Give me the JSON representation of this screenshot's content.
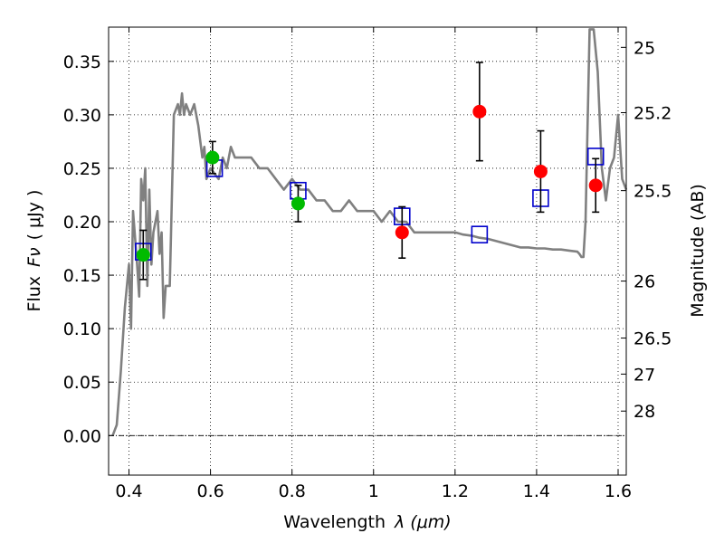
{
  "chart_data": {
    "type": "scatter",
    "xlabel": "Wavelength",
    "xlabel_symbol": "λ (μm)",
    "ylabel": "Flux",
    "ylabel_symbol": "Fν",
    "ylabel_unit": "( μJy )",
    "y2label": "Magnitude (AB)",
    "xlim": [
      0.35,
      1.62
    ],
    "ylim": [
      -0.037,
      0.382
    ],
    "grid": true,
    "x_ticks": [
      0.4,
      0.6,
      0.8,
      1.0,
      1.2,
      1.4,
      1.6
    ],
    "x_tick_labels": [
      "0.4",
      "0.6",
      "0.8",
      "1",
      "1.2",
      "1.4",
      "1.6"
    ],
    "y_ticks": [
      0.0,
      0.05,
      0.1,
      0.15,
      0.2,
      0.25,
      0.3,
      0.35
    ],
    "y_tick_labels": [
      "0.00",
      "0.05",
      "0.10",
      "0.15",
      "0.20",
      "0.25",
      "0.30",
      "0.35"
    ],
    "mag_ticks": [
      {
        "flux": 0.3631,
        "label": "25"
      },
      {
        "flux": 0.302,
        "label": "25.2"
      },
      {
        "flux": 0.2291,
        "label": "25.5"
      },
      {
        "flux": 0.1445,
        "label": "26"
      },
      {
        "flux": 0.0912,
        "label": "26.5"
      },
      {
        "flux": 0.0575,
        "label": "27"
      },
      {
        "flux": 0.0229,
        "label": "28"
      }
    ],
    "colors": {
      "model": "#808080",
      "green": "#00bb00",
      "red": "#ff0000",
      "square": "#0000cc",
      "errorbar": "#000000"
    },
    "model_spectrum": {
      "x": [
        0.36,
        0.37,
        0.38,
        0.39,
        0.4,
        0.405,
        0.41,
        0.42,
        0.425,
        0.43,
        0.435,
        0.44,
        0.445,
        0.45,
        0.455,
        0.46,
        0.47,
        0.475,
        0.48,
        0.485,
        0.49,
        0.5,
        0.51,
        0.52,
        0.525,
        0.53,
        0.535,
        0.54,
        0.55,
        0.56,
        0.57,
        0.58,
        0.585,
        0.59,
        0.6,
        0.62,
        0.63,
        0.64,
        0.65,
        0.66,
        0.68,
        0.7,
        0.72,
        0.74,
        0.76,
        0.78,
        0.8,
        0.82,
        0.84,
        0.86,
        0.88,
        0.9,
        0.92,
        0.94,
        0.96,
        0.98,
        1.0,
        1.02,
        1.04,
        1.06,
        1.08,
        1.1,
        1.12,
        1.14,
        1.16,
        1.18,
        1.2,
        1.22,
        1.24,
        1.26,
        1.28,
        1.3,
        1.32,
        1.34,
        1.36,
        1.38,
        1.4,
        1.42,
        1.44,
        1.46,
        1.48,
        1.5,
        1.505,
        1.51,
        1.515,
        1.52,
        1.53,
        1.54,
        1.55,
        1.56,
        1.57,
        1.58,
        1.59,
        1.6,
        1.61,
        1.62
      ],
      "y": [
        0.0,
        0.01,
        0.06,
        0.12,
        0.16,
        0.1,
        0.21,
        0.16,
        0.13,
        0.24,
        0.22,
        0.25,
        0.14,
        0.23,
        0.16,
        0.19,
        0.21,
        0.17,
        0.19,
        0.11,
        0.14,
        0.14,
        0.3,
        0.31,
        0.3,
        0.32,
        0.3,
        0.31,
        0.3,
        0.31,
        0.29,
        0.26,
        0.27,
        0.24,
        0.25,
        0.24,
        0.26,
        0.25,
        0.27,
        0.26,
        0.26,
        0.26,
        0.25,
        0.25,
        0.24,
        0.23,
        0.24,
        0.23,
        0.23,
        0.22,
        0.22,
        0.21,
        0.21,
        0.22,
        0.21,
        0.21,
        0.21,
        0.2,
        0.21,
        0.2,
        0.2,
        0.19,
        0.19,
        0.19,
        0.19,
        0.19,
        0.19,
        0.188,
        0.187,
        0.185,
        0.184,
        0.182,
        0.18,
        0.178,
        0.176,
        0.176,
        0.175,
        0.175,
        0.174,
        0.174,
        0.173,
        0.172,
        0.17,
        0.167,
        0.167,
        0.2,
        0.38,
        0.38,
        0.34,
        0.25,
        0.22,
        0.25,
        0.26,
        0.3,
        0.24,
        0.23
      ]
    },
    "squares": {
      "x": [
        0.435,
        0.61,
        0.815,
        1.07,
        1.26,
        1.41,
        1.545
      ],
      "y": [
        0.172,
        0.25,
        0.229,
        0.205,
        0.188,
        0.222,
        0.261
      ]
    },
    "green_points": {
      "x": [
        0.435,
        0.605,
        0.815
      ],
      "y": [
        0.169,
        0.26,
        0.217
      ],
      "err": [
        0.023,
        0.015,
        0.017
      ]
    },
    "red_points": {
      "x": [
        1.07,
        1.26,
        1.41,
        1.545
      ],
      "y": [
        0.19,
        0.303,
        0.247,
        0.234
      ],
      "err": [
        0.024,
        0.046,
        0.038,
        0.025
      ]
    }
  }
}
